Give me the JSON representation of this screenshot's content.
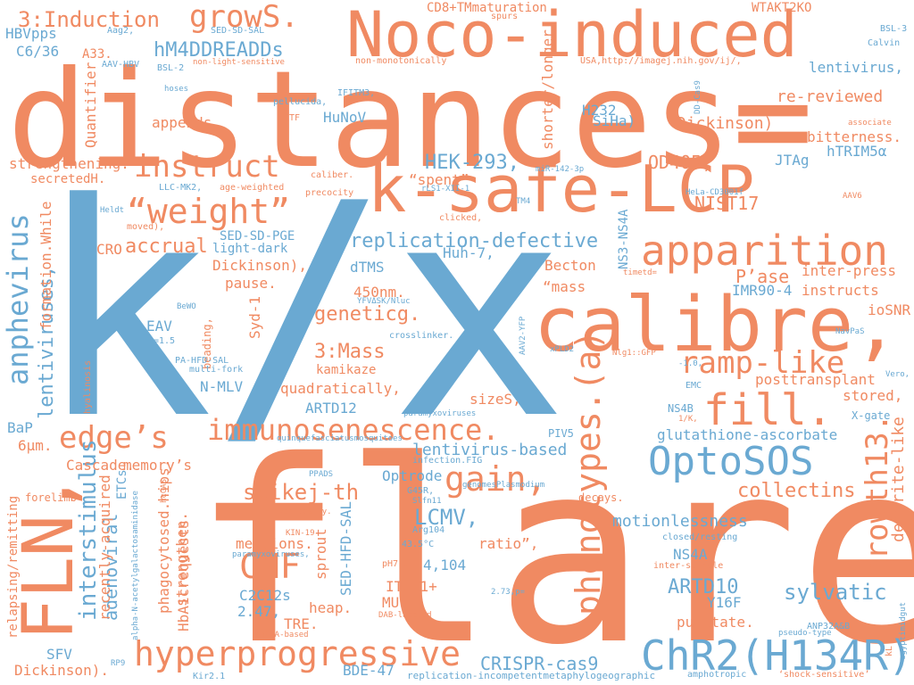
{
  "colors": {
    "orange": "#f08a62",
    "blue": "#6aa9d2"
  },
  "words": [
    {
      "text": "distances=",
      "color": "orange"
    },
    {
      "text": "k/x",
      "color": "blue"
    },
    {
      "text": "flare",
      "color": "orange"
    },
    {
      "text": "Noco-induced",
      "color": "orange"
    },
    {
      "text": "k-safe-LCP",
      "color": "orange"
    },
    {
      "text": "calibre,",
      "color": "orange"
    },
    {
      "text": "apparition",
      "color": "orange"
    },
    {
      "text": "FLN,",
      "color": "orange"
    },
    {
      "text": "phenotypes.(a)",
      "color": "orange"
    },
    {
      "text": "ChR2(H134R),",
      "color": "blue"
    },
    {
      "text": "hyperprogressive",
      "color": "orange"
    },
    {
      "text": "OptoSOS",
      "color": "blue"
    },
    {
      "text": "immunosenescence.",
      "color": "orange"
    },
    {
      "text": "fill.",
      "color": "orange"
    },
    {
      "text": "instruct",
      "color": "orange"
    },
    {
      "text": "“weight”",
      "color": "orange"
    },
    {
      "text": "growS.",
      "color": "orange"
    },
    {
      "text": "anphevirus",
      "color": "blue"
    },
    {
      "text": "growth13.",
      "color": "orange"
    },
    {
      "text": "ramp-like",
      "color": "orange"
    },
    {
      "text": "edge’s",
      "color": "orange"
    },
    {
      "text": "gain,",
      "color": "orange"
    },
    {
      "text": "CNF",
      "color": "orange"
    },
    {
      "text": "hM4DDREADDs",
      "color": "blue"
    },
    {
      "text": "3:Induction",
      "color": "orange"
    },
    {
      "text": "replication-defective",
      "color": "blue"
    },
    {
      "text": "lentiviruses,",
      "color": "blue"
    },
    {
      "text": "interstimulus",
      "color": "blue"
    },
    {
      "text": "adenoviral",
      "color": "blue"
    },
    {
      "text": "HEK-293,",
      "color": "blue"
    },
    {
      "text": "accrual",
      "color": "orange"
    },
    {
      "text": "LCMV,",
      "color": "blue"
    },
    {
      "text": "spikej-th",
      "color": "orange"
    },
    {
      "text": "collectins",
      "color": "orange"
    },
    {
      "text": "sylvatic",
      "color": "blue"
    },
    {
      "text": "ARTD10",
      "color": "blue"
    },
    {
      "text": "CRISPR-cas9",
      "color": "blue"
    },
    {
      "text": "motionlessness",
      "color": "blue"
    },
    {
      "text": "dendrite-like",
      "color": "orange"
    },
    {
      "text": "lentivirus-based",
      "color": "blue"
    },
    {
      "text": "geneticg.",
      "color": "orange"
    },
    {
      "text": "3:Mass",
      "color": "orange"
    },
    {
      "text": "NIST17",
      "color": "orange"
    },
    {
      "text": "P’ase",
      "color": "orange"
    },
    {
      "text": "OD405,",
      "color": "orange"
    },
    {
      "text": "Dickinson)",
      "color": "orange"
    },
    {
      "text": "re-reviewed",
      "color": "orange"
    },
    {
      "text": "lentivirus,",
      "color": "blue"
    },
    {
      "text": "CD8+TMmaturation",
      "color": "orange"
    },
    {
      "text": "WTAKT2KO",
      "color": "orange"
    },
    {
      "text": "HBVpps",
      "color": "blue"
    },
    {
      "text": "C6/36",
      "color": "blue"
    },
    {
      "text": "A33.",
      "color": "orange"
    },
    {
      "text": "Quantifier",
      "color": "orange"
    },
    {
      "text": "appends",
      "color": "orange"
    },
    {
      "text": "HuNoV",
      "color": "blue"
    },
    {
      "text": "strengthening.",
      "color": "orange"
    },
    {
      "text": "secretedH.",
      "color": "orange"
    },
    {
      "text": "“spent”",
      "color": "orange"
    },
    {
      "text": "SiHa)",
      "color": "blue"
    },
    {
      "text": "H232",
      "color": "blue"
    },
    {
      "text": "shorter/longer",
      "color": "orange"
    },
    {
      "text": "JTAg",
      "color": "blue"
    },
    {
      "text": "hTRIM5α",
      "color": "blue"
    },
    {
      "text": "bitterness.",
      "color": "orange"
    },
    {
      "text": "SED-SD-PGE",
      "color": "blue"
    },
    {
      "text": "light-dark",
      "color": "blue"
    },
    {
      "text": "Dickinson),",
      "color": "orange"
    },
    {
      "text": "pause.",
      "color": "orange"
    },
    {
      "text": "Syd-1",
      "color": "orange"
    },
    {
      "text": "dTMS",
      "color": "blue"
    },
    {
      "text": "Huh-7,",
      "color": "blue"
    },
    {
      "text": "Becton",
      "color": "orange"
    },
    {
      "text": "“mass",
      "color": "orange"
    },
    {
      "text": "IMR90-4",
      "color": "blue"
    },
    {
      "text": "inter-press",
      "color": "orange"
    },
    {
      "text": "instructs",
      "color": "orange"
    },
    {
      "text": "ioSNR",
      "color": "orange"
    },
    {
      "text": "450nm.",
      "color": "orange"
    },
    {
      "text": "kamikaze",
      "color": "orange"
    },
    {
      "text": "quadratically,",
      "color": "orange"
    },
    {
      "text": "ARTD12",
      "color": "blue"
    },
    {
      "text": "sizeS,",
      "color": "orange"
    },
    {
      "text": "posttransplant",
      "color": "orange"
    },
    {
      "text": "stored,",
      "color": "orange"
    },
    {
      "text": "glutathione-ascorbate",
      "color": "blue"
    },
    {
      "text": "EAV",
      "color": "blue"
    },
    {
      "text": "N-MLV",
      "color": "blue"
    },
    {
      "text": "formation.While",
      "color": "orange"
    },
    {
      "text": "CRO",
      "color": "orange"
    },
    {
      "text": "BaP",
      "color": "blue"
    },
    {
      "text": "6μm.",
      "color": "orange"
    },
    {
      "text": "Cascade.",
      "color": "orange"
    },
    {
      "text": "memory’s",
      "color": "orange"
    },
    {
      "text": "ETCs",
      "color": "blue"
    },
    {
      "text": "Optrode",
      "color": "blue"
    },
    {
      "text": "recently-acquired",
      "color": "orange"
    },
    {
      "text": "phagocytosed.hips.",
      "color": "orange"
    },
    {
      "text": "strengthen.",
      "color": "orange"
    },
    {
      "text": "HbA1crequests",
      "color": "orange"
    },
    {
      "text": "mentions.",
      "color": "orange"
    },
    {
      "text": "C2C12s",
      "color": "blue"
    },
    {
      "text": "2.47,",
      "color": "blue"
    },
    {
      "text": "TRE.",
      "color": "orange"
    },
    {
      "text": "heap.",
      "color": "orange"
    },
    {
      "text": "SED-HFD-SAL",
      "color": "blue"
    },
    {
      "text": "sprout",
      "color": "orange"
    },
    {
      "text": "ITGA1+",
      "color": "orange"
    },
    {
      "text": "MU.",
      "color": "orange"
    },
    {
      "text": "4,104",
      "color": "blue"
    },
    {
      "text": "ratio”,",
      "color": "orange"
    },
    {
      "text": "NS4A",
      "color": "blue"
    },
    {
      "text": "Y16F",
      "color": "blue"
    },
    {
      "text": "punctate.",
      "color": "orange"
    },
    {
      "text": "relapsing/remitting",
      "color": "orange"
    },
    {
      "text": "SFV",
      "color": "blue"
    },
    {
      "text": "Dickinson).",
      "color": "orange"
    },
    {
      "text": "BDE-47",
      "color": "blue"
    },
    {
      "text": "NS3-NS4A",
      "color": "blue"
    },
    {
      "text": "forelimb",
      "color": "orange"
    },
    {
      "text": "decays.",
      "color": "orange"
    },
    {
      "text": "X-gate",
      "color": "blue"
    },
    {
      "text": "NS4B",
      "color": "blue"
    },
    {
      "text": "PIV5",
      "color": "blue"
    },
    {
      "text": "EMC",
      "color": "blue"
    },
    {
      "text": "spurs",
      "color": "orange"
    },
    {
      "text": "BSL-3",
      "color": "blue"
    },
    {
      "text": "Calvin",
      "color": "blue"
    },
    {
      "text": "Aag2,",
      "color": "blue"
    },
    {
      "text": "AAV-HBV",
      "color": "blue"
    },
    {
      "text": "BSL-2",
      "color": "blue"
    },
    {
      "text": "SED-SD-SAL",
      "color": "blue"
    },
    {
      "text": "non-light-sensitive",
      "color": "orange"
    },
    {
      "text": "non-monotonically",
      "color": "orange"
    },
    {
      "text": "USA,http://imagej.nih.gov/ij/,",
      "color": "orange"
    },
    {
      "text": "DD-Cas9",
      "color": "blue"
    },
    {
      "text": "hoses",
      "color": "blue"
    },
    {
      "text": "IFITM3,",
      "color": "blue"
    },
    {
      "text": "pellucida,",
      "color": "blue"
    },
    {
      "text": "LTF",
      "color": "orange"
    },
    {
      "text": "associate",
      "color": "orange"
    },
    {
      "text": "caliber.",
      "color": "orange"
    },
    {
      "text": "age-weighted",
      "color": "orange"
    },
    {
      "text": "precocity",
      "color": "orange"
    },
    {
      "text": "LLC-MK2,",
      "color": "blue"
    },
    {
      "text": "rLS1-XII-1",
      "color": "blue"
    },
    {
      "text": "miR-142-3p",
      "color": "blue"
    },
    {
      "text": "TM4",
      "color": "blue"
    },
    {
      "text": "HeLa-CD3001f",
      "color": "blue"
    },
    {
      "text": "AAV6",
      "color": "orange"
    },
    {
      "text": "Heldt",
      "color": "blue"
    },
    {
      "text": "moved),",
      "color": "orange"
    },
    {
      "text": "clicked,",
      "color": "orange"
    },
    {
      "text": "timetd=",
      "color": "orange"
    },
    {
      "text": "BeWO",
      "color": "blue"
    },
    {
      "text": "YFVΔSK/Nluc",
      "color": "blue"
    },
    {
      "text": "=1.5",
      "color": "blue"
    },
    {
      "text": "beading,",
      "color": "orange"
    },
    {
      "text": "crosslinker.",
      "color": "blue"
    },
    {
      "text": "AAV2-YFP",
      "color": "blue"
    },
    {
      "text": "xPLD2",
      "color": "blue"
    },
    {
      "text": "NavPaS",
      "color": "blue"
    },
    {
      "text": "PA-HFD-SAL",
      "color": "blue"
    },
    {
      "text": "multi-fork",
      "color": "blue"
    },
    {
      "text": "Nlg1::GFP",
      "color": "orange"
    },
    {
      "text": "-1.0,",
      "color": "blue"
    },
    {
      "text": "Vero,",
      "color": "blue"
    },
    {
      "text": "hyalinosis",
      "color": "orange"
    },
    {
      "text": "paramyxoviruses",
      "color": "blue"
    },
    {
      "text": "1/K,",
      "color": "orange"
    },
    {
      "text": "quinquefasciatusmosquitoes",
      "color": "blue"
    },
    {
      "text": "infection.FIG",
      "color": "blue"
    },
    {
      "text": "PPADS",
      "color": "blue"
    },
    {
      "text": "G45R,",
      "color": "blue"
    },
    {
      "text": "Slfn11",
      "color": "blue"
    },
    {
      "text": "genomesPlasmodium",
      "color": "blue"
    },
    {
      "text": "hcGAS",
      "color": "orange"
    },
    {
      "text": "alpha-N-acetylgalactosaminidase",
      "color": "blue"
    },
    {
      "text": "varicosity.",
      "color": "orange"
    },
    {
      "text": "Arg104",
      "color": "blue"
    },
    {
      "text": "43.5°C",
      "color": "blue"
    },
    {
      "text": "KIN-19",
      "color": "orange"
    },
    {
      "text": "paramyxoviruses,",
      "color": "blue"
    },
    {
      "text": "pH7.5.",
      "color": "orange"
    },
    {
      "text": "closed/resting",
      "color": "blue"
    },
    {
      "text": "inter-spindle",
      "color": "orange"
    },
    {
      "text": "2.73,p=",
      "color": "blue"
    },
    {
      "text": "DAB-labeled",
      "color": "orange"
    },
    {
      "text": "ANP32A&B",
      "color": "blue"
    },
    {
      "text": "egyptimidgut",
      "color": "blue"
    },
    {
      "text": "pseudo-type",
      "color": "blue"
    },
    {
      "text": "shRNA-based",
      "color": "orange"
    },
    {
      "text": "‘shock-sensitive’",
      "color": "orange"
    },
    {
      "text": "RP9",
      "color": "blue"
    },
    {
      "text": "Kir2.1",
      "color": "blue"
    },
    {
      "text": "replication-incompetentmetaphylogeographic",
      "color": "blue"
    },
    {
      "text": "amphotropic",
      "color": "blue"
    },
    {
      "text": "kL",
      "color": "orange"
    }
  ]
}
